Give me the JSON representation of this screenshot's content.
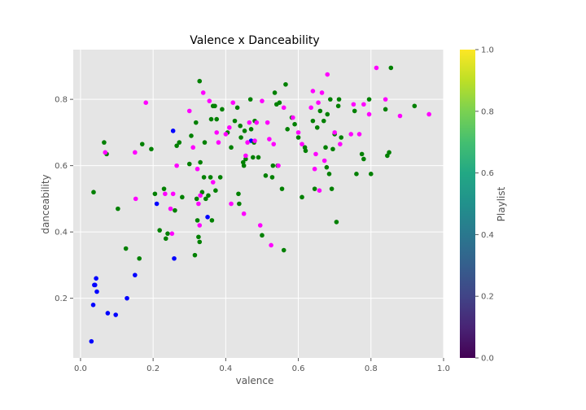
{
  "chart_data": {
    "type": "scatter",
    "title": "Valence x Danceability",
    "xlabel": "valence",
    "ylabel": "danceability",
    "xlim": [
      -0.02,
      1.0
    ],
    "ylim": [
      0.02,
      0.95
    ],
    "xticks": [
      "0.0",
      "0.2",
      "0.4",
      "0.6",
      "0.8",
      "1.0"
    ],
    "yticks": [
      "0.2",
      "0.4",
      "0.6",
      "0.8"
    ],
    "grid": true,
    "colorbar": {
      "label": "Playlist",
      "range": [
        0.0,
        1.0
      ],
      "ticks": [
        "0.0",
        "0.2",
        "0.4",
        "0.6",
        "0.8",
        "1.0"
      ],
      "colormap": "viridis"
    },
    "series": [
      {
        "color": "#0000ff",
        "points": [
          [
            0.03,
            0.07
          ],
          [
            0.035,
            0.18
          ],
          [
            0.038,
            0.24
          ],
          [
            0.043,
            0.26
          ],
          [
            0.045,
            0.22
          ],
          [
            0.04,
            0.24
          ],
          [
            0.075,
            0.155
          ],
          [
            0.097,
            0.15
          ],
          [
            0.128,
            0.2
          ],
          [
            0.15,
            0.27
          ],
          [
            0.21,
            0.485
          ],
          [
            0.255,
            0.705
          ],
          [
            0.258,
            0.32
          ],
          [
            0.35,
            0.445
          ],
          [
            0.47,
            0.675
          ]
        ]
      },
      {
        "color": "#008000",
        "points": [
          [
            0.036,
            0.52
          ],
          [
            0.065,
            0.67
          ],
          [
            0.072,
            0.635
          ],
          [
            0.103,
            0.47
          ],
          [
            0.125,
            0.35
          ],
          [
            0.162,
            0.32
          ],
          [
            0.17,
            0.665
          ],
          [
            0.195,
            0.65
          ],
          [
            0.205,
            0.515
          ],
          [
            0.218,
            0.405
          ],
          [
            0.23,
            0.53
          ],
          [
            0.235,
            0.38
          ],
          [
            0.24,
            0.395
          ],
          [
            0.26,
            0.465
          ],
          [
            0.265,
            0.66
          ],
          [
            0.272,
            0.67
          ],
          [
            0.28,
            0.505
          ],
          [
            0.3,
            0.605
          ],
          [
            0.305,
            0.69
          ],
          [
            0.315,
            0.33
          ],
          [
            0.318,
            0.73
          ],
          [
            0.32,
            0.5
          ],
          [
            0.322,
            0.435
          ],
          [
            0.325,
            0.385
          ],
          [
            0.328,
            0.37
          ],
          [
            0.328,
            0.855
          ],
          [
            0.33,
            0.61
          ],
          [
            0.335,
            0.52
          ],
          [
            0.34,
            0.565
          ],
          [
            0.342,
            0.67
          ],
          [
            0.345,
            0.5
          ],
          [
            0.352,
            0.51
          ],
          [
            0.358,
            0.565
          ],
          [
            0.36,
            0.74
          ],
          [
            0.362,
            0.435
          ],
          [
            0.365,
            0.78
          ],
          [
            0.37,
            0.78
          ],
          [
            0.372,
            0.525
          ],
          [
            0.375,
            0.74
          ],
          [
            0.385,
            0.565
          ],
          [
            0.39,
            0.77
          ],
          [
            0.405,
            0.7
          ],
          [
            0.415,
            0.655
          ],
          [
            0.425,
            0.735
          ],
          [
            0.432,
            0.775
          ],
          [
            0.435,
            0.515
          ],
          [
            0.437,
            0.485
          ],
          [
            0.44,
            0.72
          ],
          [
            0.442,
            0.685
          ],
          [
            0.448,
            0.61
          ],
          [
            0.45,
            0.6
          ],
          [
            0.452,
            0.705
          ],
          [
            0.455,
            0.62
          ],
          [
            0.468,
            0.8
          ],
          [
            0.47,
            0.71
          ],
          [
            0.475,
            0.625
          ],
          [
            0.478,
            0.67
          ],
          [
            0.48,
            0.735
          ],
          [
            0.49,
            0.625
          ],
          [
            0.5,
            0.39
          ],
          [
            0.51,
            0.57
          ],
          [
            0.528,
            0.565
          ],
          [
            0.53,
            0.6
          ],
          [
            0.535,
            0.82
          ],
          [
            0.54,
            0.785
          ],
          [
            0.543,
            0.6
          ],
          [
            0.548,
            0.79
          ],
          [
            0.555,
            0.53
          ],
          [
            0.56,
            0.345
          ],
          [
            0.565,
            0.845
          ],
          [
            0.57,
            0.71
          ],
          [
            0.582,
            0.745
          ],
          [
            0.59,
            0.725
          ],
          [
            0.6,
            0.685
          ],
          [
            0.61,
            0.505
          ],
          [
            0.618,
            0.655
          ],
          [
            0.62,
            0.645
          ],
          [
            0.64,
            0.735
          ],
          [
            0.645,
            0.53
          ],
          [
            0.652,
            0.715
          ],
          [
            0.66,
            0.765
          ],
          [
            0.67,
            0.735
          ],
          [
            0.675,
            0.655
          ],
          [
            0.678,
            0.595
          ],
          [
            0.68,
            0.755
          ],
          [
            0.685,
            0.575
          ],
          [
            0.688,
            0.8
          ],
          [
            0.692,
            0.53
          ],
          [
            0.695,
            0.65
          ],
          [
            0.7,
            0.695
          ],
          [
            0.705,
            0.43
          ],
          [
            0.71,
            0.78
          ],
          [
            0.712,
            0.8
          ],
          [
            0.718,
            0.685
          ],
          [
            0.755,
            0.765
          ],
          [
            0.76,
            0.575
          ],
          [
            0.775,
            0.635
          ],
          [
            0.78,
            0.62
          ],
          [
            0.795,
            0.8
          ],
          [
            0.8,
            0.575
          ],
          [
            0.84,
            0.77
          ],
          [
            0.845,
            0.63
          ],
          [
            0.85,
            0.64
          ],
          [
            0.855,
            0.895
          ],
          [
            0.92,
            0.78
          ]
        ]
      },
      {
        "color": "#ff00ff",
        "points": [
          [
            0.068,
            0.64
          ],
          [
            0.15,
            0.64
          ],
          [
            0.152,
            0.5
          ],
          [
            0.18,
            0.79
          ],
          [
            0.233,
            0.515
          ],
          [
            0.248,
            0.47
          ],
          [
            0.252,
            0.395
          ],
          [
            0.255,
            0.515
          ],
          [
            0.265,
            0.6
          ],
          [
            0.3,
            0.765
          ],
          [
            0.31,
            0.655
          ],
          [
            0.322,
            0.59
          ],
          [
            0.325,
            0.485
          ],
          [
            0.328,
            0.42
          ],
          [
            0.33,
            0.51
          ],
          [
            0.338,
            0.82
          ],
          [
            0.355,
            0.795
          ],
          [
            0.365,
            0.55
          ],
          [
            0.375,
            0.7
          ],
          [
            0.38,
            0.67
          ],
          [
            0.4,
            0.695
          ],
          [
            0.41,
            0.715
          ],
          [
            0.415,
            0.485
          ],
          [
            0.42,
            0.79
          ],
          [
            0.45,
            0.455
          ],
          [
            0.455,
            0.63
          ],
          [
            0.46,
            0.67
          ],
          [
            0.465,
            0.73
          ],
          [
            0.48,
            0.675
          ],
          [
            0.485,
            0.73
          ],
          [
            0.495,
            0.42
          ],
          [
            0.5,
            0.795
          ],
          [
            0.515,
            0.73
          ],
          [
            0.52,
            0.68
          ],
          [
            0.525,
            0.36
          ],
          [
            0.532,
            0.665
          ],
          [
            0.545,
            0.6
          ],
          [
            0.56,
            0.775
          ],
          [
            0.585,
            0.745
          ],
          [
            0.6,
            0.7
          ],
          [
            0.61,
            0.665
          ],
          [
            0.635,
            0.775
          ],
          [
            0.64,
            0.825
          ],
          [
            0.645,
            0.59
          ],
          [
            0.648,
            0.635
          ],
          [
            0.655,
            0.79
          ],
          [
            0.658,
            0.525
          ],
          [
            0.665,
            0.82
          ],
          [
            0.672,
            0.615
          ],
          [
            0.68,
            0.875
          ],
          [
            0.7,
            0.7
          ],
          [
            0.715,
            0.665
          ],
          [
            0.745,
            0.695
          ],
          [
            0.752,
            0.785
          ],
          [
            0.768,
            0.695
          ],
          [
            0.78,
            0.785
          ],
          [
            0.795,
            0.755
          ],
          [
            0.815,
            0.895
          ],
          [
            0.84,
            0.8
          ],
          [
            0.88,
            0.75
          ],
          [
            0.96,
            0.755
          ]
        ]
      }
    ]
  }
}
